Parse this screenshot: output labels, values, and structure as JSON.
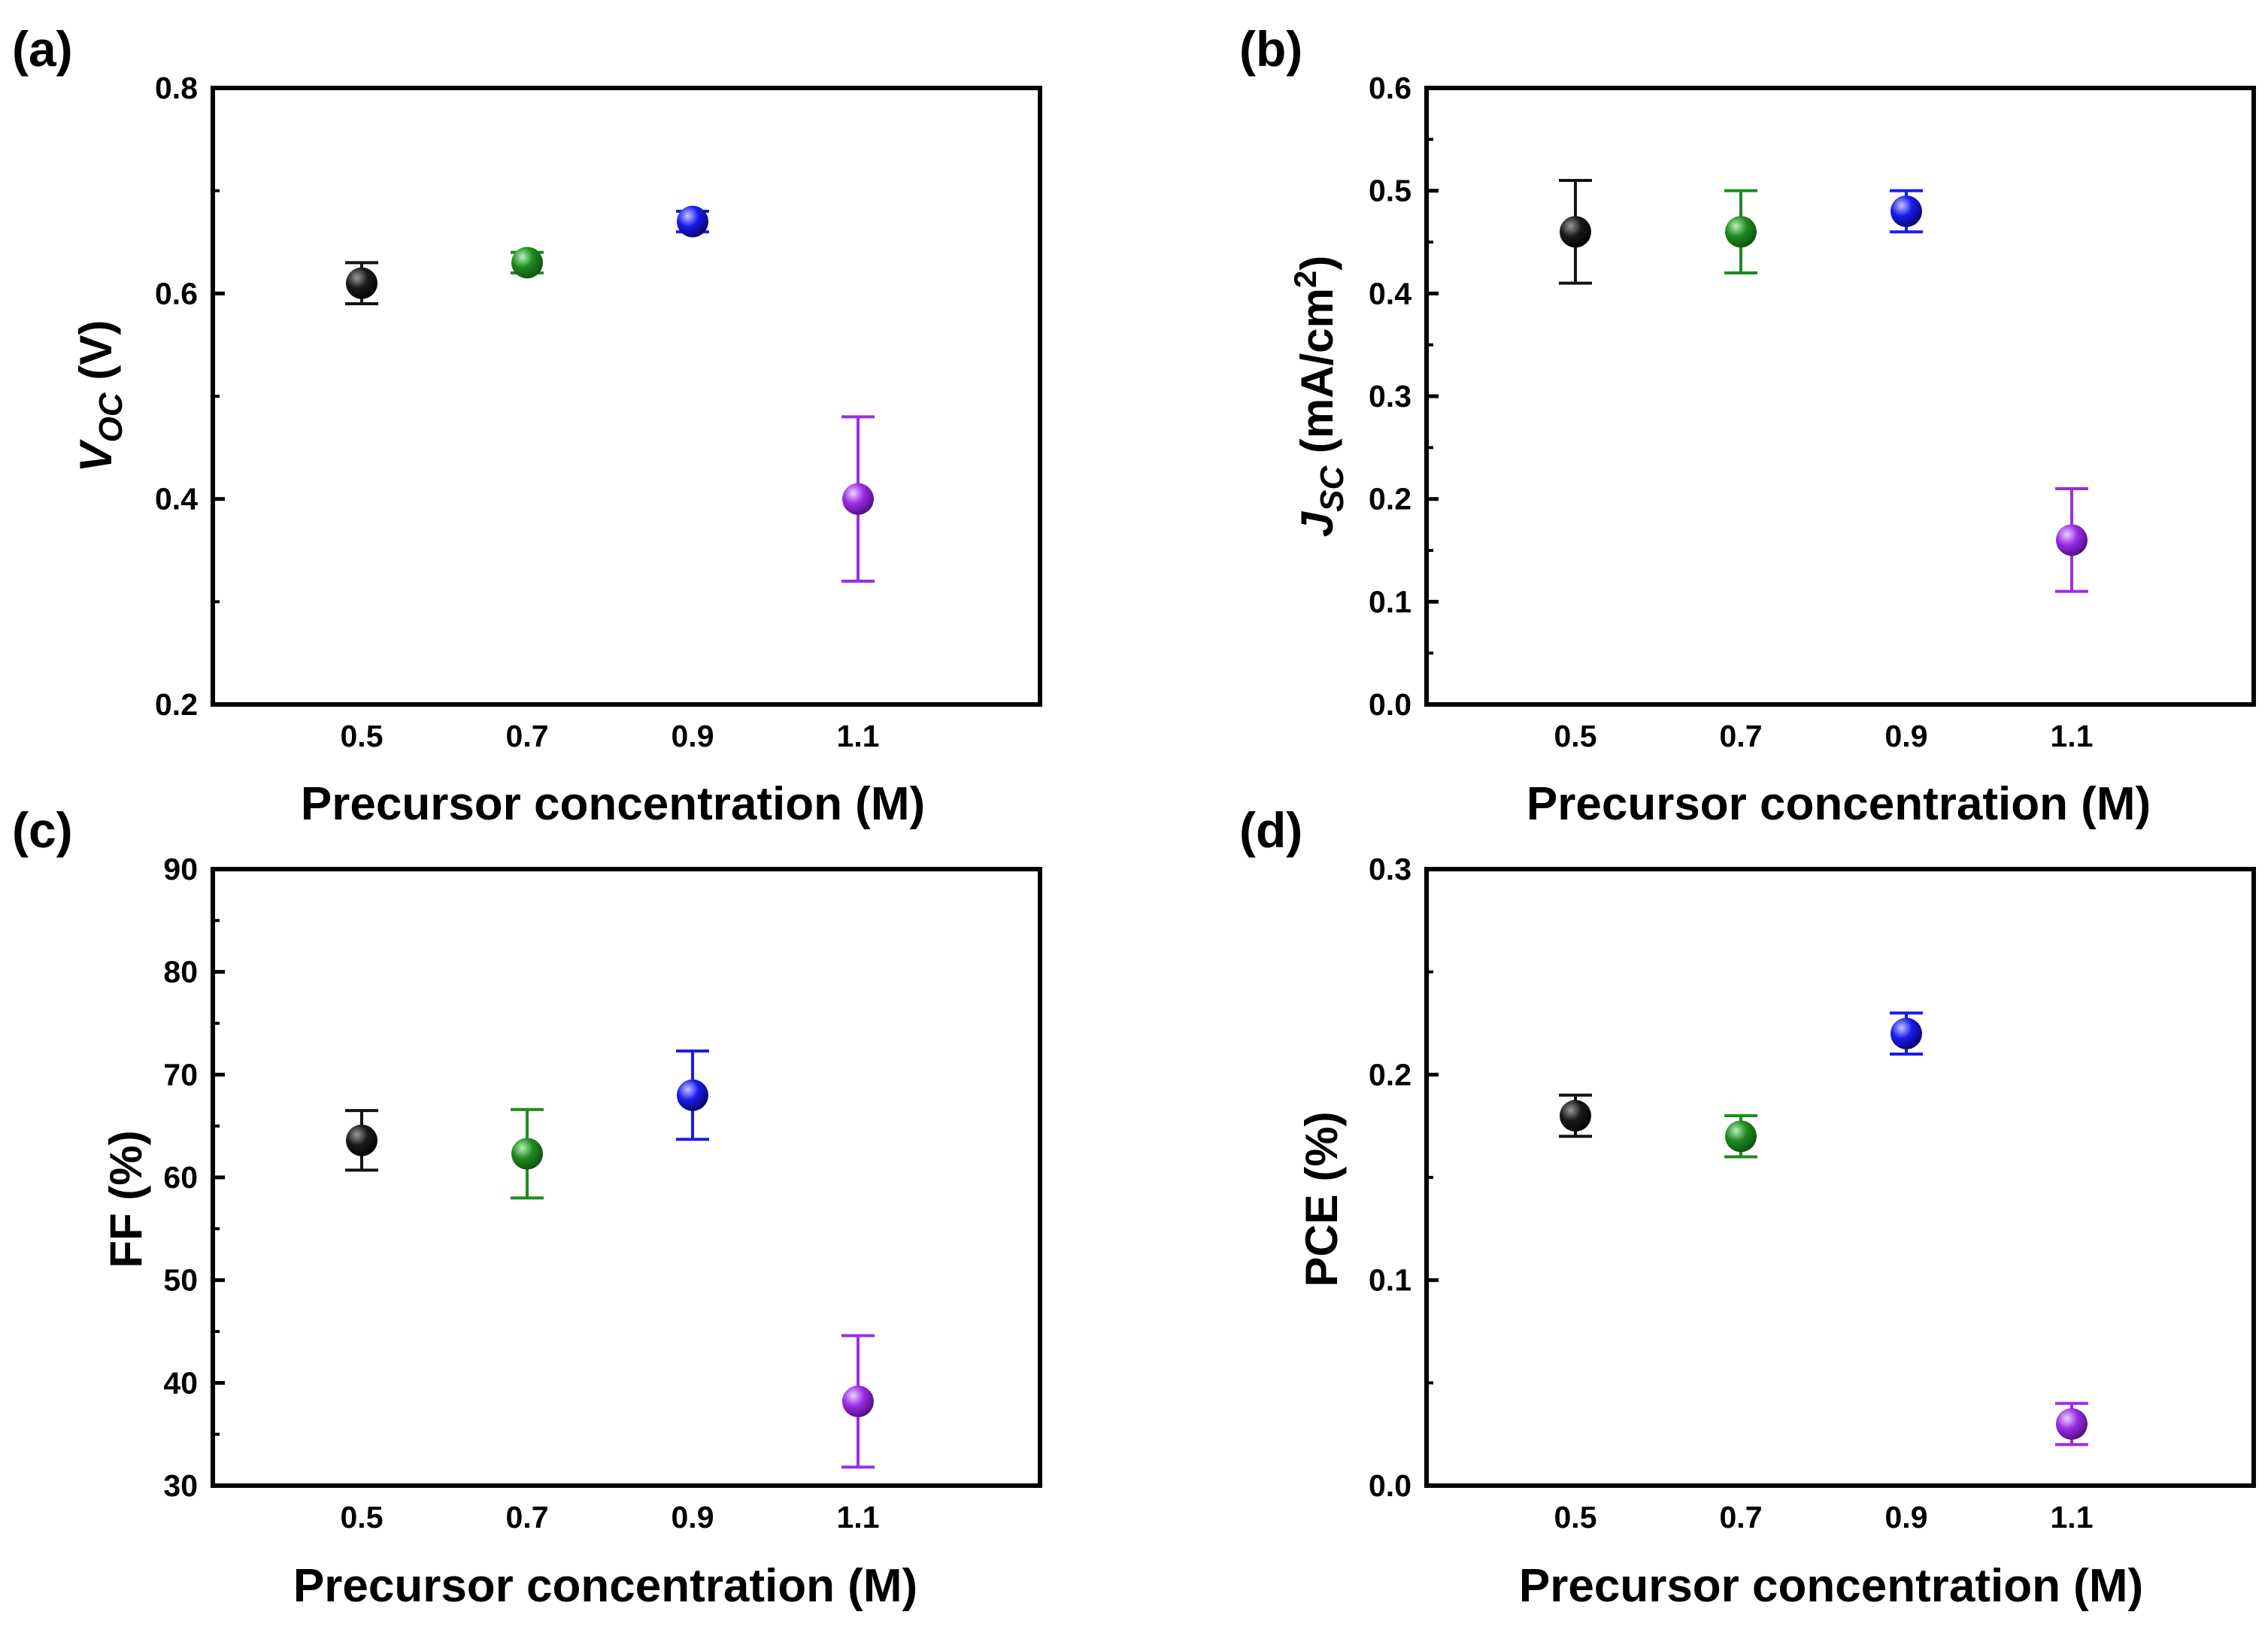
{
  "colors": {
    "black": "#111111",
    "green": "#1f8a1f",
    "blue": "#1a1aee",
    "purple": "#9a2de6"
  },
  "chart_data": [
    {
      "type": "scatter",
      "panel": "(a)",
      "xlabel": "Precursor concentration (M)",
      "ylabel": {
        "main": "V",
        "sub": "OC",
        "unit": " (V)",
        "italic_main": true
      },
      "categories": [
        "0.5",
        "0.7",
        "0.9",
        "1.1"
      ],
      "x": [
        0.5,
        0.7,
        0.9,
        1.1
      ],
      "xlim": [
        0.32,
        1.32
      ],
      "ylim": [
        0.2,
        0.8
      ],
      "yticks": [
        0.2,
        0.4,
        0.6,
        0.8
      ],
      "ytick_labels": [
        "0.2",
        "0.4",
        "0.6",
        "0.8"
      ],
      "y_minor_step": 0.1,
      "values": [
        0.61,
        0.63,
        0.67,
        0.4
      ],
      "errors": [
        0.02,
        0.01,
        0.01,
        0.08
      ],
      "point_colors": [
        "black",
        "green",
        "blue",
        "purple"
      ]
    },
    {
      "type": "scatter",
      "panel": "(b)",
      "xlabel": "Precursor concentration (M)",
      "ylabel": {
        "main": "J",
        "sub": "SC",
        "unit": " (mA/cm",
        "sup": "2",
        "tail": ")",
        "italic_main": true
      },
      "categories": [
        "0.5",
        "0.7",
        "0.9",
        "1.1"
      ],
      "x": [
        0.5,
        0.7,
        0.9,
        1.1
      ],
      "xlim": [
        0.32,
        1.32
      ],
      "ylim": [
        0.0,
        0.6
      ],
      "yticks": [
        0.0,
        0.1,
        0.2,
        0.3,
        0.4,
        0.5,
        0.6
      ],
      "ytick_labels": [
        "0.0",
        "0.1",
        "0.2",
        "0.3",
        "0.4",
        "0.5",
        "0.6"
      ],
      "y_minor_step": 0.05,
      "values": [
        0.46,
        0.46,
        0.48,
        0.16
      ],
      "errors": [
        0.05,
        0.04,
        0.02,
        0.05
      ],
      "point_colors": [
        "black",
        "green",
        "blue",
        "purple"
      ]
    },
    {
      "type": "scatter",
      "panel": "(c)",
      "xlabel": "Precursor concentration (M)",
      "ylabel": {
        "main": "FF (%)"
      },
      "categories": [
        "0.5",
        "0.7",
        "0.9",
        "1.1"
      ],
      "x": [
        0.5,
        0.7,
        0.9,
        1.1
      ],
      "xlim": [
        0.32,
        1.32
      ],
      "ylim": [
        30,
        90
      ],
      "yticks": [
        30,
        40,
        50,
        60,
        70,
        80,
        90
      ],
      "ytick_labels": [
        "30",
        "40",
        "50",
        "60",
        "70",
        "80",
        "90"
      ],
      "y_minor_step": 5,
      "values": [
        63.6,
        62.3,
        68.0,
        38.2
      ],
      "errors": [
        2.9,
        4.3,
        4.3,
        6.4
      ],
      "point_colors": [
        "black",
        "green",
        "blue",
        "purple"
      ]
    },
    {
      "type": "scatter",
      "panel": "(d)",
      "xlabel": "Precursor concentration (M)",
      "ylabel": {
        "main": "PCE (%)"
      },
      "categories": [
        "0.5",
        "0.7",
        "0.9",
        "1.1"
      ],
      "x": [
        0.5,
        0.7,
        0.9,
        1.1
      ],
      "xlim": [
        0.32,
        1.32
      ],
      "ylim": [
        0.0,
        0.3
      ],
      "yticks": [
        0.0,
        0.1,
        0.2,
        0.3
      ],
      "ytick_labels": [
        "0.0",
        "0.1",
        "0.2",
        "0.3"
      ],
      "y_minor_step": 0.05,
      "values": [
        0.18,
        0.17,
        0.22,
        0.03
      ],
      "errors": [
        0.01,
        0.01,
        0.01,
        0.01
      ],
      "point_colors": [
        "black",
        "green",
        "blue",
        "purple"
      ]
    }
  ]
}
